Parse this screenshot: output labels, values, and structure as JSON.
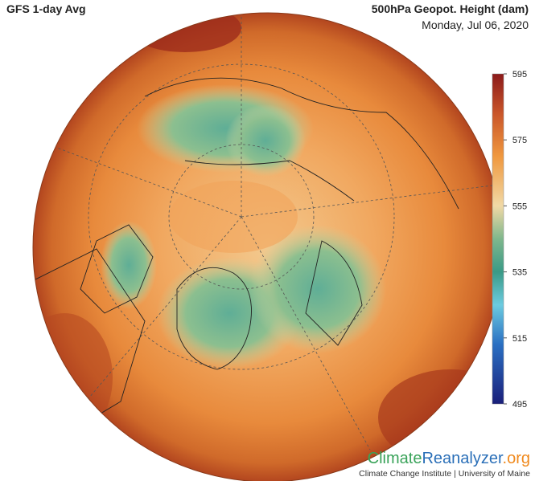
{
  "header": {
    "title": "GFS 1-day Avg",
    "variable": "500hPa Geopot. Height (dam)",
    "date": "Monday, Jul 06, 2020"
  },
  "colorbar": {
    "lim": [
      495,
      595
    ],
    "ticks": [
      595,
      575,
      555,
      535,
      515,
      495
    ]
  },
  "footer": {
    "logo": [
      "Climate",
      "Reanalyzer",
      ".org"
    ],
    "credit": "Climate Change Institute | University of Maine"
  }
}
